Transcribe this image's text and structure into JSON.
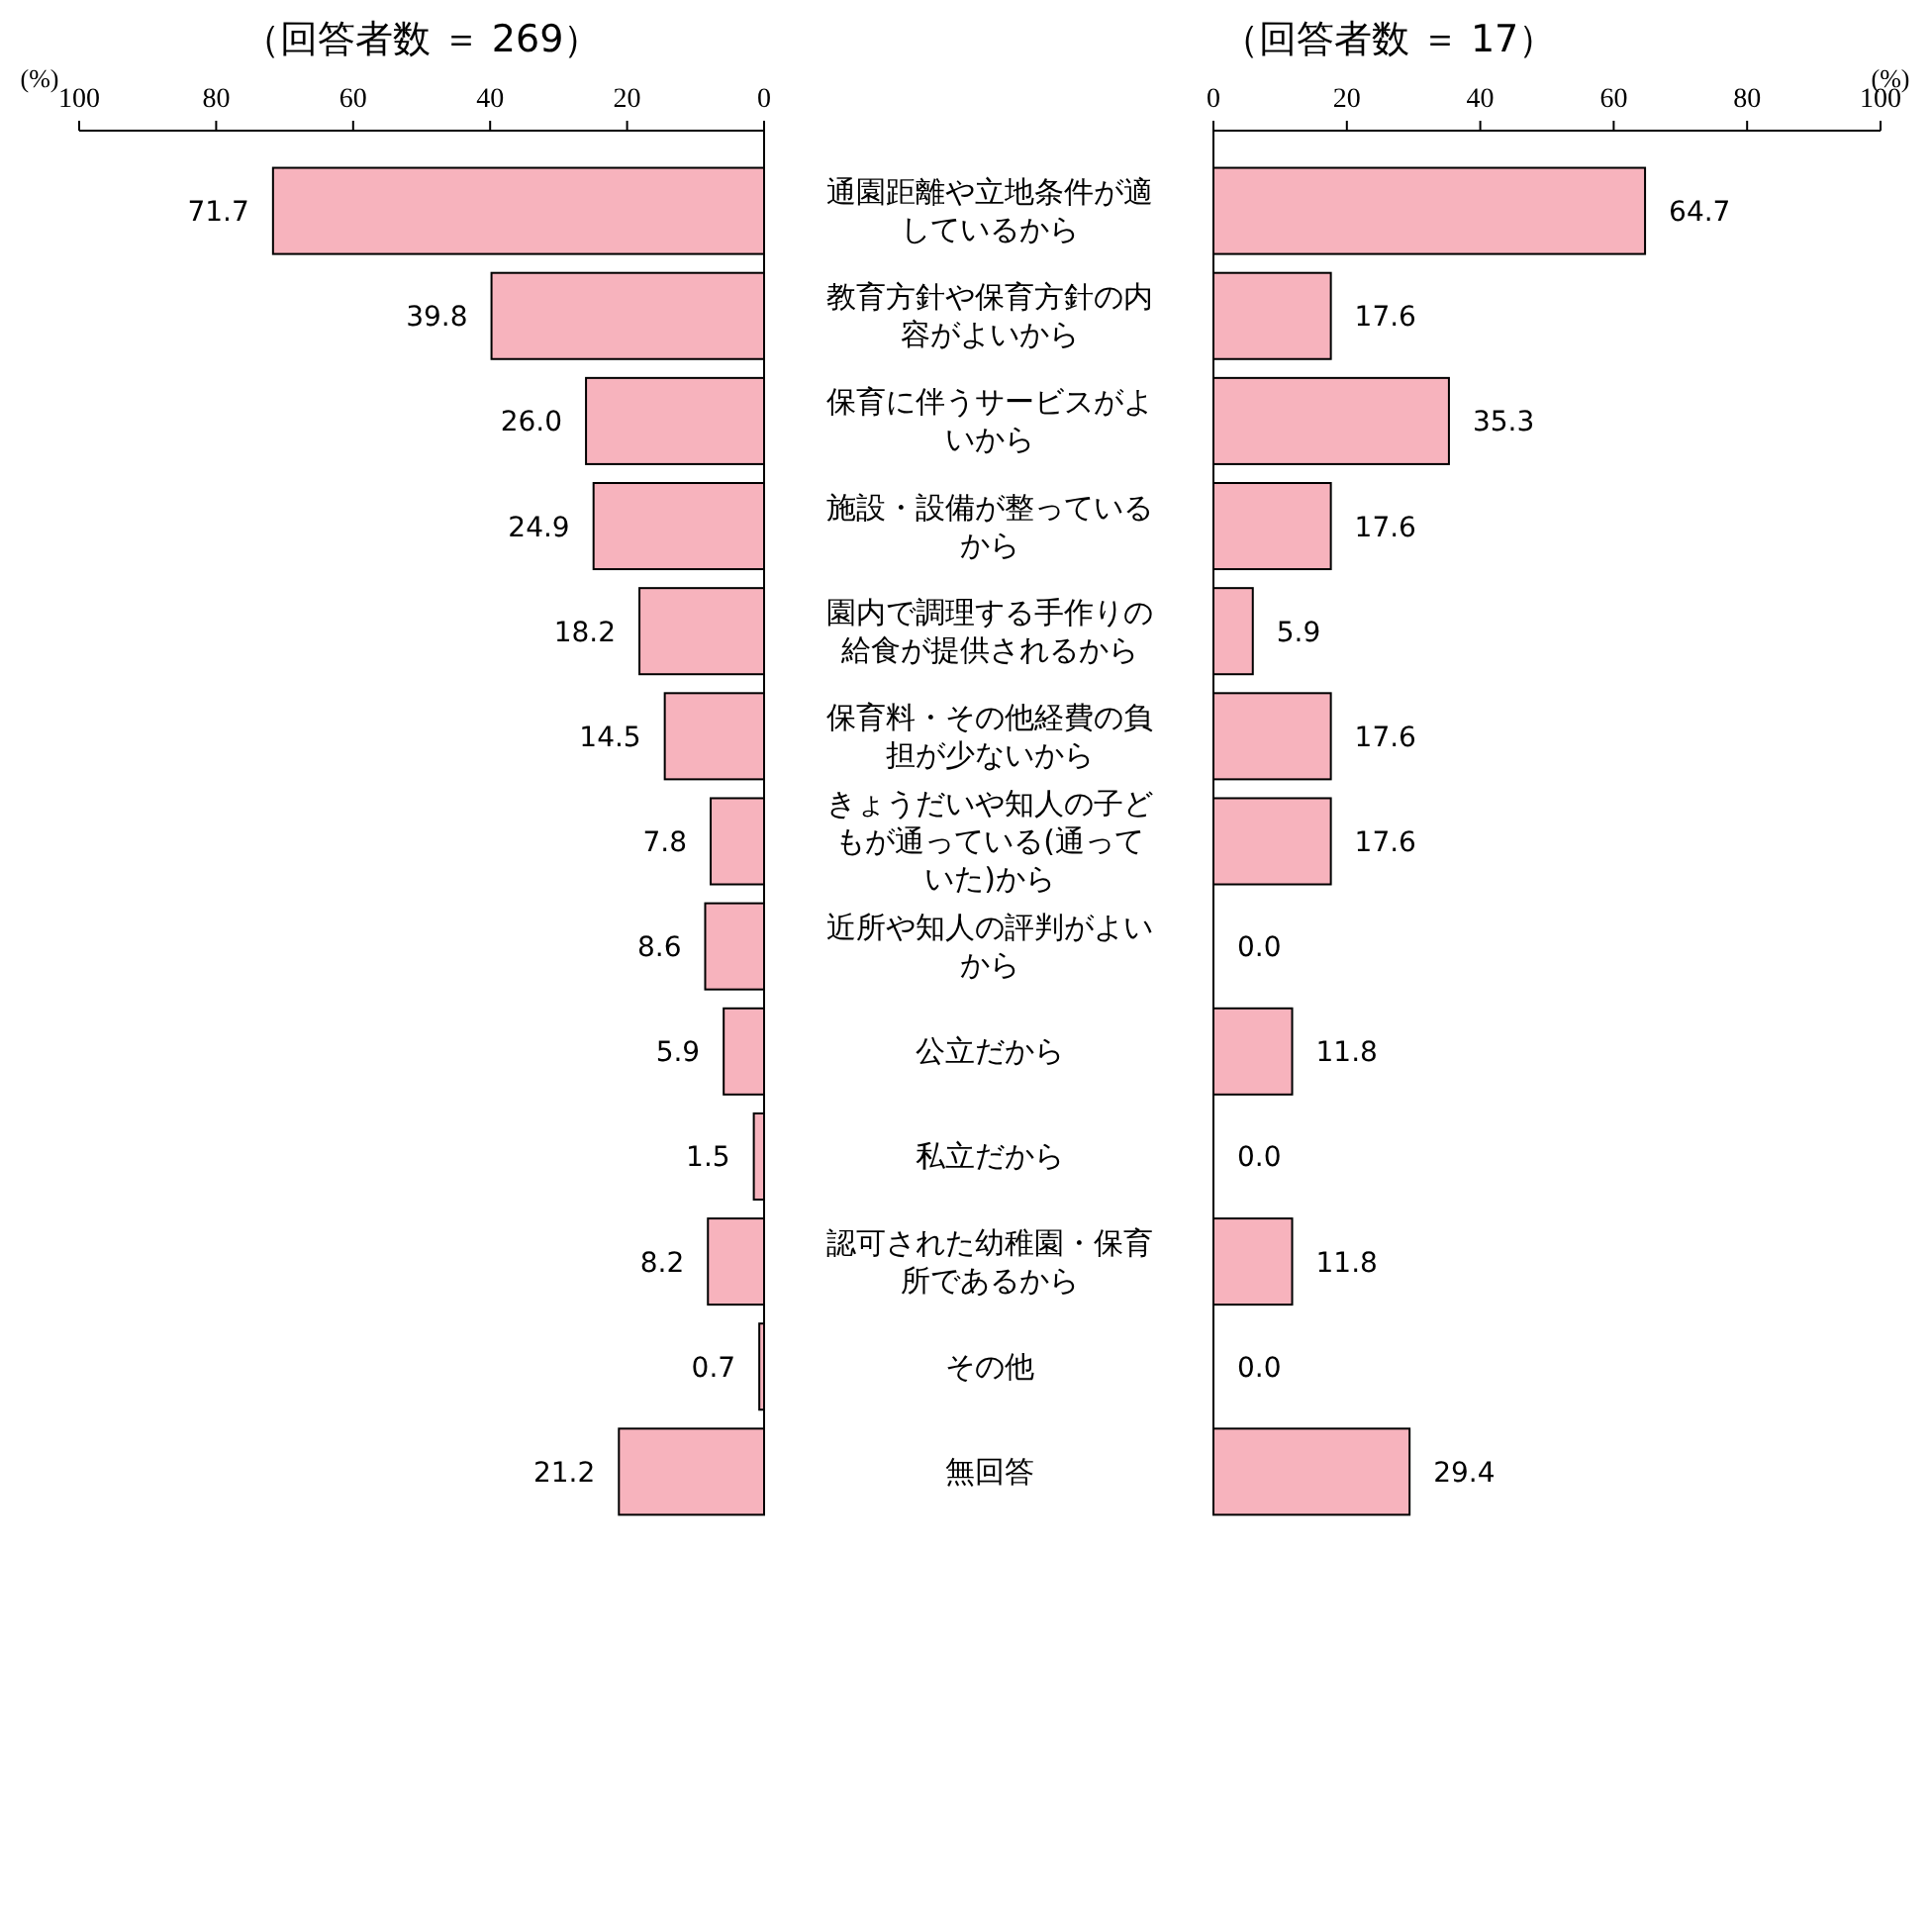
{
  "chart_data": [
    {
      "type": "bar",
      "orientation": "horizontal",
      "title": "（回答者数 ＝ 269）",
      "xlabel": "(%)",
      "categories": [
        "通園距離や立地条件が適しているから",
        "教育方針や保育方針の内容がよいから",
        "保育に伴うサービスがよいから",
        "施設・設備が整っているから",
        "園内で調理する手作りの給食が提供されるから",
        "保育料・その他経費の負担が少ないから",
        "きょうだいや知人の子どもが通っている(通っていた)から",
        "近所や知人の評判がよいから",
        "公立だから",
        "私立だから",
        "認可された幼稚園・保育所であるから",
        "その他",
        "無回答"
      ],
      "values": [
        71.7,
        39.8,
        26.0,
        24.9,
        18.2,
        14.5,
        7.8,
        8.6,
        5.9,
        1.5,
        8.2,
        0.7,
        21.2
      ],
      "value_labels": [
        "71.7",
        "39.8",
        "26.0",
        "24.9",
        "18.2",
        "14.5",
        "7.8",
        "8.6",
        "5.9",
        "1.5",
        "8.2",
        "0.7",
        "21.2"
      ],
      "color": "#f7b3bd",
      "xlim": [
        100,
        0
      ],
      "xticks": [
        100,
        80,
        60,
        40,
        20,
        0
      ]
    },
    {
      "type": "bar",
      "orientation": "horizontal",
      "title": "（回答者数 ＝ 17）",
      "xlabel": "(%)",
      "categories": [
        null,
        null,
        null,
        null,
        null,
        null,
        null,
        null,
        null,
        null,
        null,
        null,
        null
      ],
      "values": [
        64.7,
        17.6,
        35.3,
        17.6,
        5.9,
        17.6,
        17.6,
        0.0,
        11.8,
        0.0,
        11.8,
        0.0,
        29.4
      ],
      "value_labels": [
        "64.7",
        "17.6",
        "35.3",
        "17.6",
        "5.9",
        "17.6",
        "17.6",
        "0.0",
        "11.8",
        "0.0",
        "11.8",
        "0.0",
        "29.4"
      ],
      "color": "#f7b3bd",
      "xlim": [
        0,
        100
      ],
      "xticks": [
        0,
        20,
        40,
        60,
        80,
        100
      ]
    }
  ]
}
